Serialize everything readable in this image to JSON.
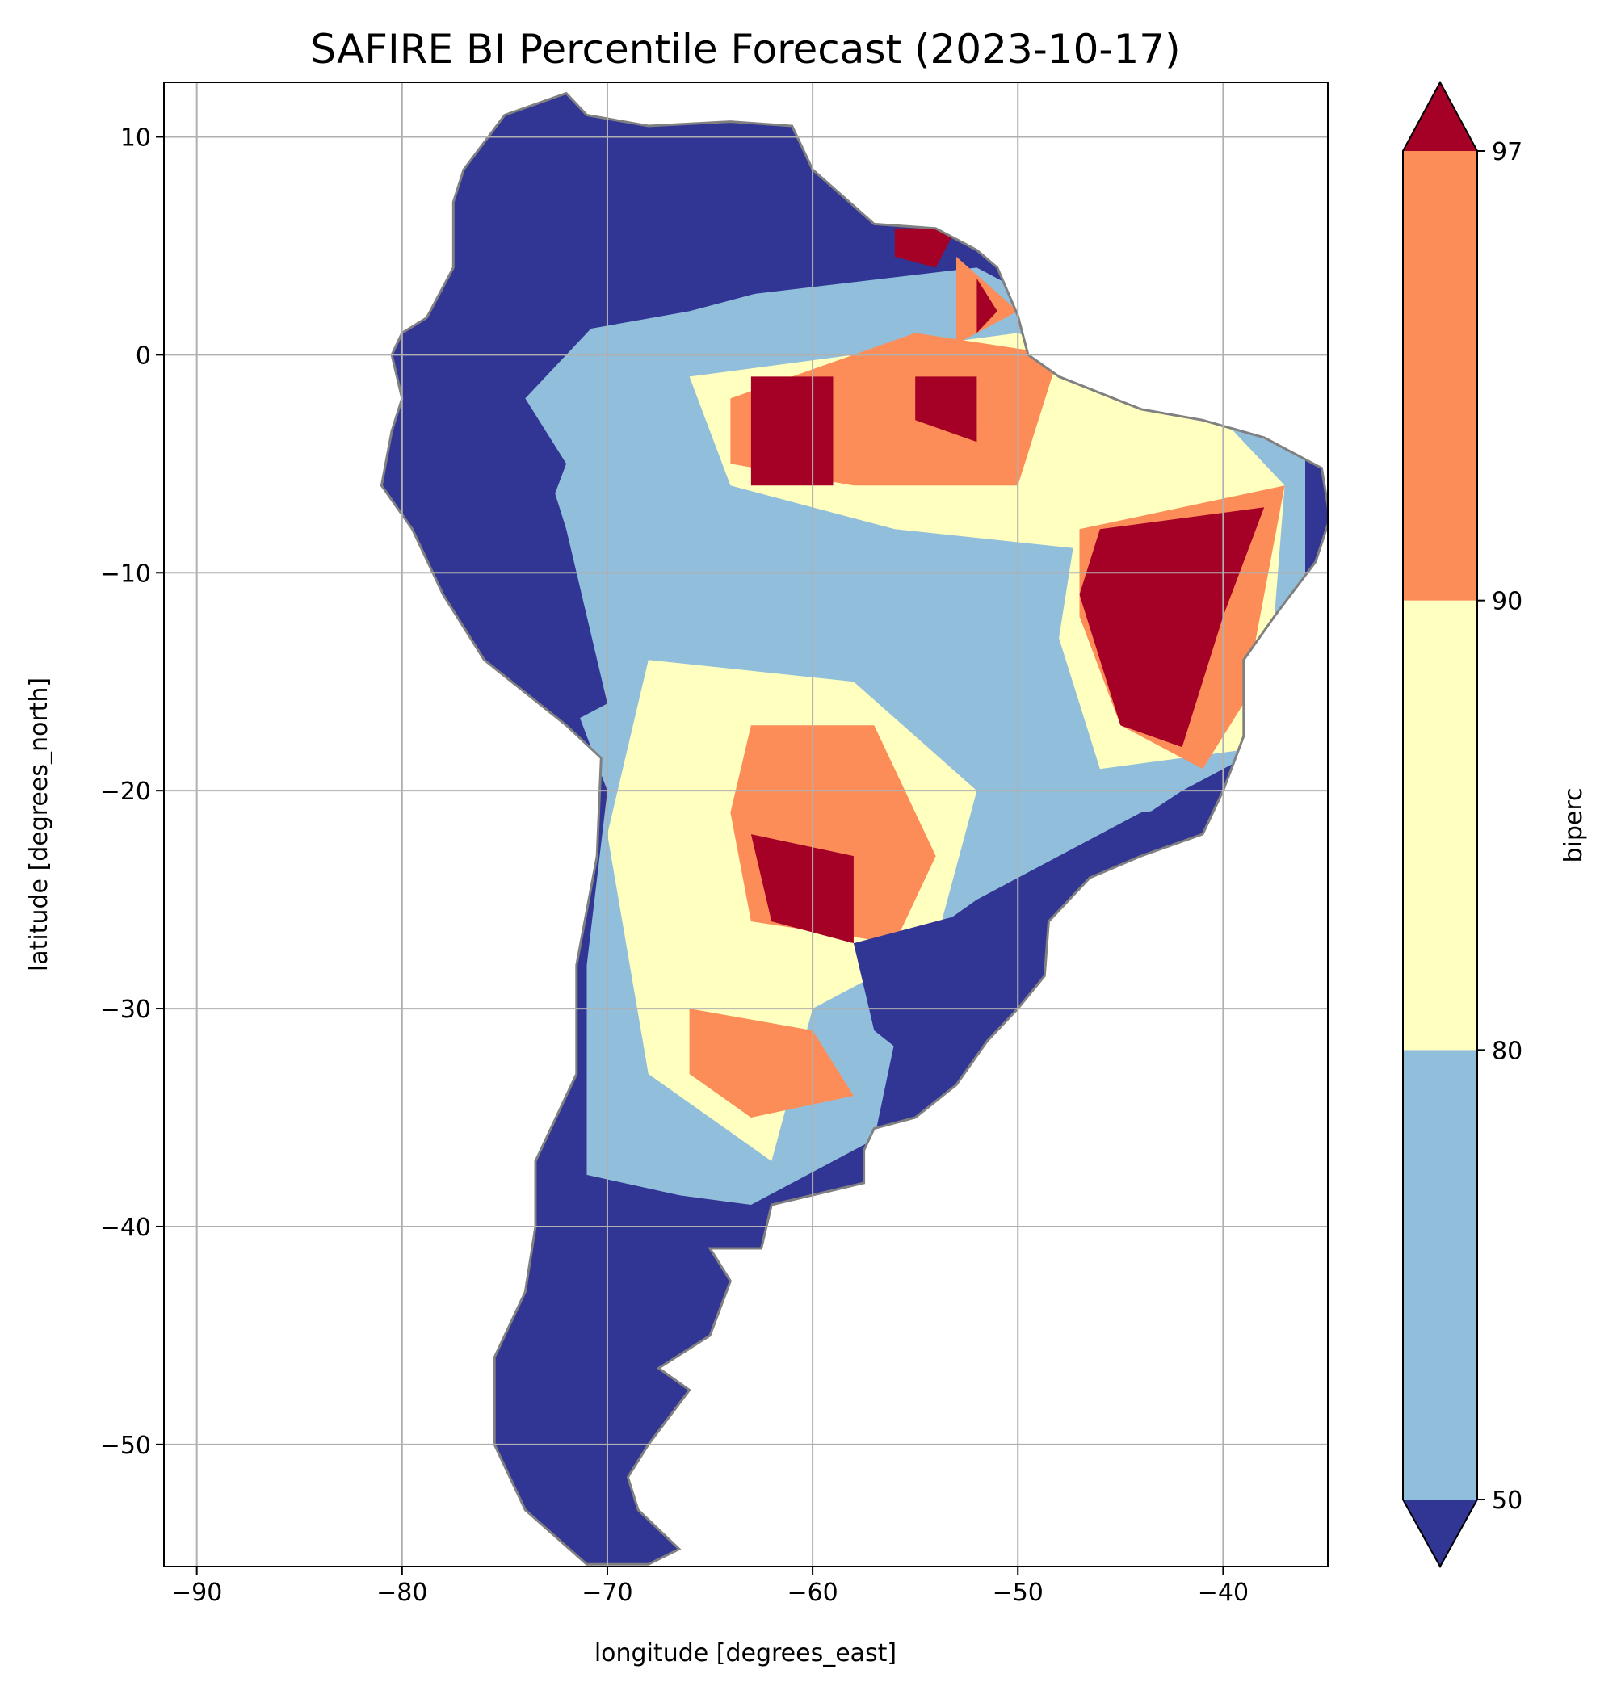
{
  "chart_data": {
    "type": "heatmap",
    "title": "SAFIRE BI Percentile Forecast (2023-10-17)",
    "xlabel": "longitude [degrees_east]",
    "ylabel": "latitude [degrees_north]",
    "xlim": [
      -91.6,
      -34.9
    ],
    "ylim": [
      -55.6,
      12.5
    ],
    "xticks": [
      -90,
      -80,
      -70,
      -60,
      -50,
      -40
    ],
    "xtick_labels": [
      "−90",
      "−80",
      "−70",
      "−60",
      "−50",
      "−40"
    ],
    "yticks": [
      10,
      0,
      -10,
      -20,
      -30,
      -40,
      -50
    ],
    "ytick_labels": [
      "10",
      "0",
      "−10",
      "−20",
      "−30",
      "−40",
      "−50"
    ],
    "grid": true,
    "colorbar": {
      "label": "biperc",
      "levels": [
        50,
        80,
        90,
        97
      ],
      "level_labels": [
        "50",
        "80",
        "90",
        "97"
      ],
      "extend": "both",
      "colors": {
        "under": "#313695",
        "50-80": "#91bfdb",
        "80-90": "#ffffbf",
        "90-97": "#fc8d59",
        "over": "#a50026"
      }
    },
    "border_color": "#808080"
  }
}
